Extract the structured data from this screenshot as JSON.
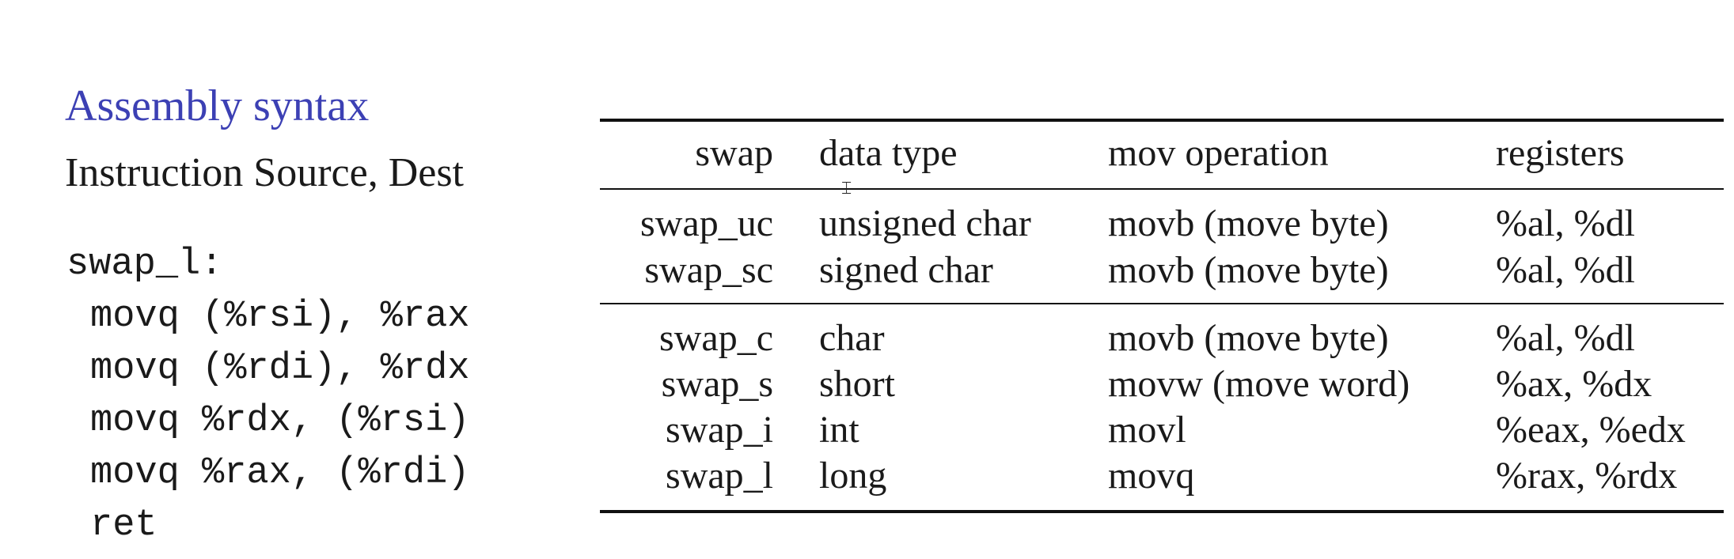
{
  "title": "Assembly syntax",
  "subtitle": "Instruction Source, Dest",
  "code": [
    "swap_l:",
    "movq (%rsi), %rax",
    "movq (%rdi), %rdx",
    "movq %rdx, (%rsi)",
    "movq %rax, (%rdi)",
    "ret"
  ],
  "table": {
    "headers": {
      "swap": "swap",
      "type": "data type",
      "mov": "mov operation",
      "reg": "registers"
    },
    "rows": [
      {
        "swap": "swap_uc",
        "type": "unsigned char",
        "mov": "movb (move byte)",
        "reg": "%al, %dl"
      },
      {
        "swap": "swap_sc",
        "type": "signed char",
        "mov": "movb (move byte)",
        "reg": "%al, %dl"
      },
      {
        "swap": "swap_c",
        "type": "char",
        "mov": "movb (move byte)",
        "reg": "%al, %dl"
      },
      {
        "swap": "swap_s",
        "type": "short",
        "mov": "movw (move word)",
        "reg": "%ax, %dx"
      },
      {
        "swap": "swap_i",
        "type": "int",
        "mov": "movl",
        "reg": "%eax, %edx"
      },
      {
        "swap": "swap_l",
        "type": "long",
        "mov": "movq",
        "reg": "%rax, %rdx"
      }
    ]
  },
  "cursor_icon": "text-cursor-icon"
}
